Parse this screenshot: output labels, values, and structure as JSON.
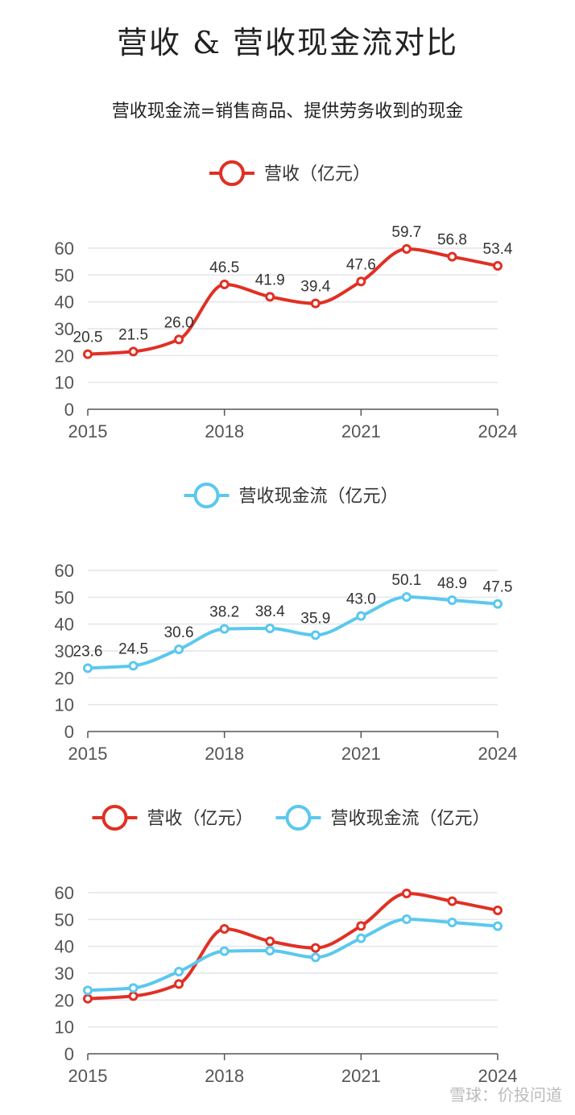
{
  "title": "营收 & 营收现金流对比",
  "subtitle": "营收现金流=销售商品、提供劳务收到的现金",
  "watermark": "雪球：价投问道",
  "colors": {
    "revenue": "#e03024",
    "cashflow": "#5bc8ee",
    "axis": "#555555",
    "grid": "#e4e4ec"
  },
  "chart_data": [
    {
      "type": "line",
      "x": [
        2015,
        2016,
        2017,
        2018,
        2019,
        2020,
        2021,
        2022,
        2023,
        2024
      ],
      "xticks": [
        "2015",
        "2018",
        "2021",
        "2024"
      ],
      "yticks": [
        "0",
        "10",
        "20",
        "30",
        "40",
        "50",
        "60"
      ],
      "ylim": [
        0,
        60
      ],
      "smooth": true,
      "grid": true,
      "legend": "top-center",
      "series": [
        {
          "name": "营收（亿元）",
          "key": "revenue",
          "values": [
            20.5,
            21.5,
            26.0,
            46.5,
            41.9,
            39.4,
            47.6,
            59.7,
            56.8,
            53.4
          ],
          "labels": [
            "20.5",
            "21.5",
            "26.0",
            "46.5",
            "41.9",
            "39.4",
            "47.6",
            "59.7",
            "56.8",
            "53.4"
          ]
        }
      ]
    },
    {
      "type": "line",
      "x": [
        2015,
        2016,
        2017,
        2018,
        2019,
        2020,
        2021,
        2022,
        2023,
        2024
      ],
      "xticks": [
        "2015",
        "2018",
        "2021",
        "2024"
      ],
      "yticks": [
        "0",
        "10",
        "20",
        "30",
        "40",
        "50",
        "60"
      ],
      "ylim": [
        0,
        60
      ],
      "smooth": true,
      "grid": true,
      "legend": "top-center",
      "series": [
        {
          "name": "营收现金流（亿元）",
          "key": "cashflow",
          "values": [
            23.6,
            24.5,
            30.6,
            38.2,
            38.4,
            35.9,
            43.0,
            50.1,
            48.9,
            47.5
          ],
          "labels": [
            "23.6",
            "24.5",
            "30.6",
            "38.2",
            "38.4",
            "35.9",
            "43.0",
            "50.1",
            "48.9",
            "47.5"
          ]
        }
      ]
    },
    {
      "type": "line",
      "x": [
        2015,
        2016,
        2017,
        2018,
        2019,
        2020,
        2021,
        2022,
        2023,
        2024
      ],
      "xticks": [
        "2015",
        "2018",
        "2021",
        "2024"
      ],
      "yticks": [
        "0",
        "10",
        "20",
        "30",
        "40",
        "50",
        "60"
      ],
      "ylim": [
        0,
        60
      ],
      "smooth": true,
      "grid": true,
      "legend": "top-center",
      "series": [
        {
          "name": "营收（亿元）",
          "key": "revenue",
          "values": [
            20.5,
            21.5,
            26.0,
            46.5,
            41.9,
            39.4,
            47.6,
            59.7,
            56.8,
            53.4
          ]
        },
        {
          "name": "营收现金流（亿元）",
          "key": "cashflow",
          "values": [
            23.6,
            24.5,
            30.6,
            38.2,
            38.4,
            35.9,
            43.0,
            50.1,
            48.9,
            47.5
          ]
        }
      ]
    }
  ]
}
